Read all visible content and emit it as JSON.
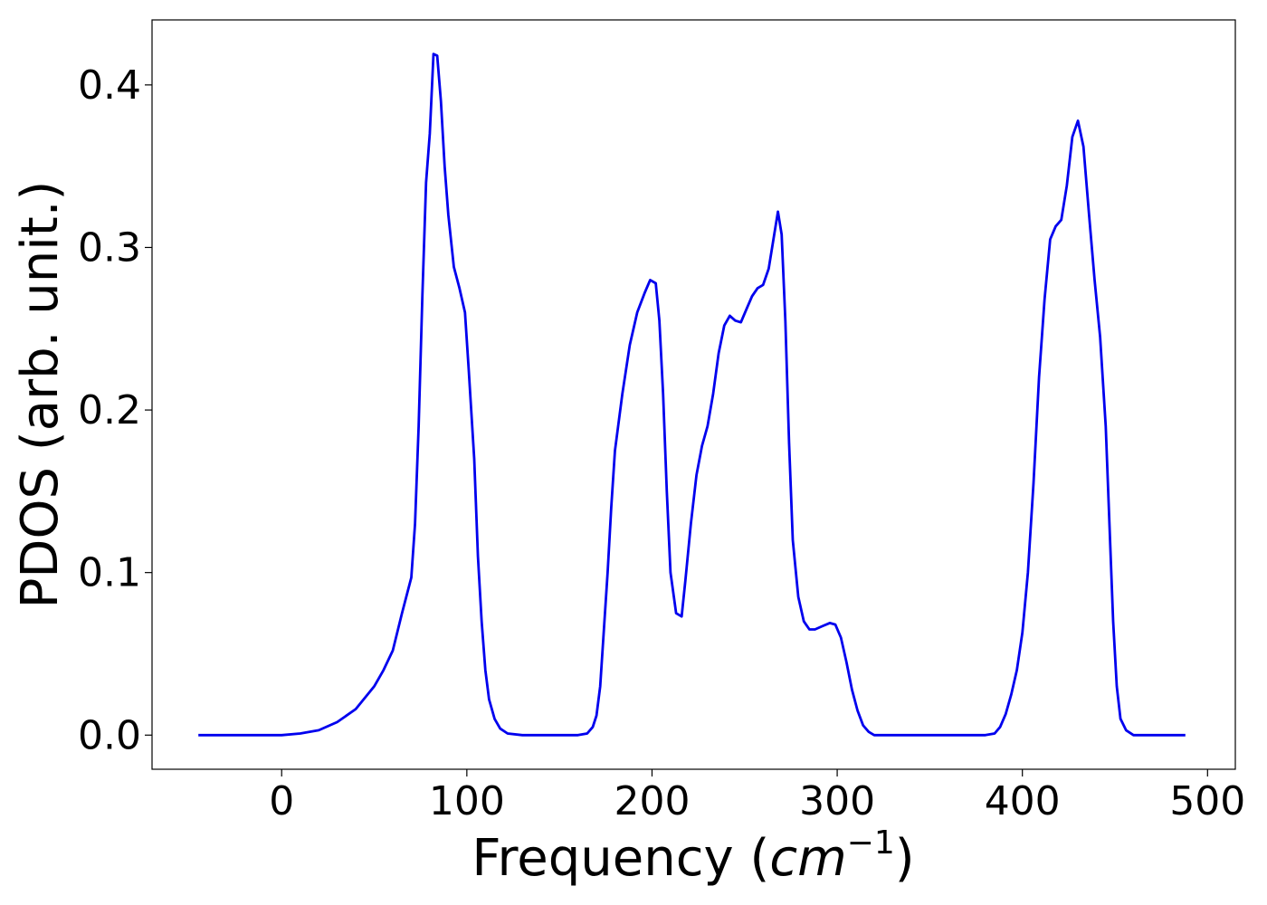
{
  "chart_data": {
    "type": "line",
    "xlabel": "Frequency (",
    "xlabel_math": "cm",
    "xlabel_exp": "−1",
    "xlabel_close": ")",
    "ylabel": "PDOS (arb. unit.)",
    "xlim": [
      -70,
      515
    ],
    "ylim": [
      -0.021,
      0.44
    ],
    "x_ticks": [
      0,
      100,
      200,
      300,
      400,
      500
    ],
    "x_tick_labels": [
      "0",
      "100",
      "200",
      "300",
      "400",
      "500"
    ],
    "y_ticks": [
      0.0,
      0.1,
      0.2,
      0.3,
      0.4
    ],
    "y_tick_labels": [
      "0.0",
      "0.1",
      "0.2",
      "0.3",
      "0.4"
    ],
    "grid": false,
    "series": [
      {
        "color": "#0000ee",
        "points": [
          [
            -45,
            0
          ],
          [
            -20,
            0
          ],
          [
            0,
            0
          ],
          [
            10,
            0.001
          ],
          [
            20,
            0.003
          ],
          [
            30,
            0.008
          ],
          [
            40,
            0.016
          ],
          [
            50,
            0.03
          ],
          [
            55,
            0.04
          ],
          [
            60,
            0.052
          ],
          [
            65,
            0.075
          ],
          [
            70,
            0.097
          ],
          [
            72,
            0.13
          ],
          [
            74,
            0.19
          ],
          [
            76,
            0.27
          ],
          [
            78,
            0.34
          ],
          [
            80,
            0.37
          ],
          [
            82,
            0.419
          ],
          [
            84,
            0.418
          ],
          [
            86,
            0.39
          ],
          [
            88,
            0.35
          ],
          [
            90,
            0.32
          ],
          [
            93,
            0.288
          ],
          [
            96,
            0.275
          ],
          [
            99,
            0.26
          ],
          [
            101,
            0.225
          ],
          [
            104,
            0.17
          ],
          [
            106,
            0.11
          ],
          [
            108,
            0.07
          ],
          [
            110,
            0.04
          ],
          [
            112,
            0.022
          ],
          [
            115,
            0.01
          ],
          [
            118,
            0.004
          ],
          [
            122,
            0.001
          ],
          [
            130,
            0
          ],
          [
            160,
            0
          ],
          [
            165,
            0.001
          ],
          [
            168,
            0.005
          ],
          [
            170,
            0.012
          ],
          [
            172,
            0.03
          ],
          [
            174,
            0.065
          ],
          [
            176,
            0.1
          ],
          [
            178,
            0.14
          ],
          [
            180,
            0.175
          ],
          [
            184,
            0.21
          ],
          [
            188,
            0.24
          ],
          [
            192,
            0.26
          ],
          [
            196,
            0.272
          ],
          [
            199,
            0.28
          ],
          [
            202,
            0.278
          ],
          [
            204,
            0.255
          ],
          [
            206,
            0.21
          ],
          [
            208,
            0.15
          ],
          [
            210,
            0.1
          ],
          [
            213,
            0.075
          ],
          [
            216,
            0.073
          ],
          [
            218,
            0.095
          ],
          [
            221,
            0.13
          ],
          [
            224,
            0.16
          ],
          [
            227,
            0.178
          ],
          [
            230,
            0.19
          ],
          [
            233,
            0.21
          ],
          [
            236,
            0.235
          ],
          [
            239,
            0.252
          ],
          [
            242,
            0.258
          ],
          [
            245,
            0.255
          ],
          [
            248,
            0.254
          ],
          [
            251,
            0.262
          ],
          [
            254,
            0.27
          ],
          [
            257,
            0.275
          ],
          [
            260,
            0.277
          ],
          [
            263,
            0.287
          ],
          [
            266,
            0.308
          ],
          [
            268,
            0.322
          ],
          [
            270,
            0.308
          ],
          [
            272,
            0.255
          ],
          [
            274,
            0.18
          ],
          [
            276,
            0.12
          ],
          [
            279,
            0.085
          ],
          [
            282,
            0.07
          ],
          [
            285,
            0.065
          ],
          [
            288,
            0.065
          ],
          [
            292,
            0.067
          ],
          [
            296,
            0.069
          ],
          [
            299,
            0.068
          ],
          [
            302,
            0.06
          ],
          [
            305,
            0.045
          ],
          [
            308,
            0.028
          ],
          [
            311,
            0.015
          ],
          [
            314,
            0.006
          ],
          [
            317,
            0.002
          ],
          [
            320,
            0
          ],
          [
            340,
            0
          ],
          [
            380,
            0
          ],
          [
            385,
            0.001
          ],
          [
            388,
            0.005
          ],
          [
            391,
            0.013
          ],
          [
            394,
            0.025
          ],
          [
            397,
            0.04
          ],
          [
            400,
            0.063
          ],
          [
            403,
            0.1
          ],
          [
            406,
            0.155
          ],
          [
            409,
            0.22
          ],
          [
            412,
            0.268
          ],
          [
            415,
            0.305
          ],
          [
            418,
            0.313
          ],
          [
            421,
            0.317
          ],
          [
            424,
            0.338
          ],
          [
            427,
            0.368
          ],
          [
            430,
            0.378
          ],
          [
            433,
            0.362
          ],
          [
            436,
            0.32
          ],
          [
            439,
            0.28
          ],
          [
            442,
            0.245
          ],
          [
            445,
            0.19
          ],
          [
            447,
            0.13
          ],
          [
            449,
            0.07
          ],
          [
            451,
            0.03
          ],
          [
            453,
            0.01
          ],
          [
            456,
            0.003
          ],
          [
            460,
            0
          ],
          [
            488,
            0
          ]
        ]
      }
    ]
  }
}
